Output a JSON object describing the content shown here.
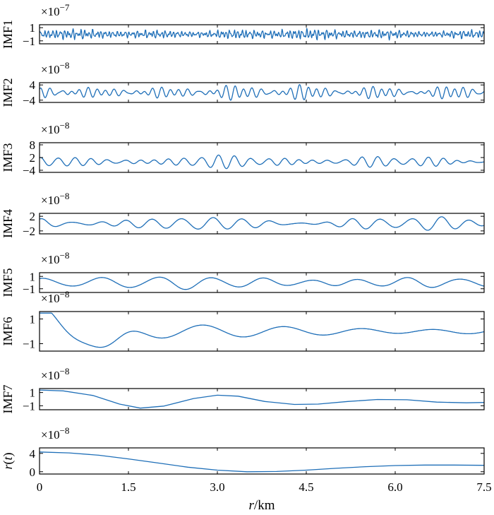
{
  "chart_data": [
    {
      "type": "line",
      "ylabel": "IMF1",
      "multiplier_base": "×10",
      "multiplier_exp": "−7",
      "ylim": [
        -1.45,
        1.45
      ],
      "yticks": [
        {
          "v": 1,
          "label": "1"
        },
        {
          "v": -1,
          "label": "−1"
        }
      ],
      "series": [
        {
          "components": [
            [
              0.32,
              0.068,
              0
            ],
            [
              0.22,
              0.047,
              1.3
            ],
            [
              0.14,
              0.032,
              2.1
            ],
            [
              0.12,
              0.11,
              0.7
            ]
          ]
        }
      ]
    },
    {
      "type": "line",
      "ylabel": "IMF2",
      "multiplier_base": "×10",
      "multiplier_exp": "−8",
      "ylim": [
        -5.2,
        5.2
      ],
      "yticks": [
        {
          "v": 4,
          "label": "4"
        },
        {
          "v": -4,
          "label": "−4"
        }
      ],
      "series": [
        {
          "components": [
            [
              1.4,
              0.155,
              0
            ],
            [
              1.2,
              0.137,
              1.1
            ],
            [
              0.8,
              0.21,
              2.2
            ]
          ]
        }
      ]
    },
    {
      "type": "line",
      "ylabel": "IMF3",
      "multiplier_base": "×10",
      "multiplier_exp": "−8",
      "ylim": [
        -5,
        9
      ],
      "yticks": [
        {
          "v": 8,
          "label": "8"
        },
        {
          "v": 2,
          "label": "2"
        },
        {
          "v": -4,
          "label": "−4"
        }
      ],
      "series": [
        {
          "components": [
            [
              1.3,
              0.27,
              0.5
            ],
            [
              0.9,
              0.3,
              1.5
            ],
            [
              0.5,
              0.22,
              2.4
            ]
          ]
        }
      ]
    },
    {
      "type": "line",
      "ylabel": "IMF4",
      "multiplier_base": "×10",
      "multiplier_exp": "−8",
      "ylim": [
        -2.8,
        2.8
      ],
      "yticks": [
        {
          "v": 2,
          "label": "2"
        },
        {
          "v": -2,
          "label": "−2"
        }
      ],
      "series": [
        {
          "components": [
            [
              0.9,
              0.48,
              1.2
            ],
            [
              0.5,
              0.56,
              0.2
            ],
            [
              0.3,
              0.38,
              2.0
            ]
          ]
        }
      ]
    },
    {
      "type": "line",
      "ylabel": "IMF5",
      "multiplier_base": "×10",
      "multiplier_exp": "−8",
      "ylim": [
        -1.6,
        1.6
      ],
      "yticks": [
        {
          "v": 1,
          "label": "1"
        },
        {
          "v": -1,
          "label": "−1"
        }
      ],
      "series": [
        {
          "components": [
            [
              0.55,
              0.88,
              0.3
            ],
            [
              0.35,
              1.0,
              1.5
            ],
            [
              0.25,
              0.78,
              2.6
            ]
          ]
        }
      ]
    },
    {
      "type": "line",
      "ylabel": "IMF6",
      "multiplier_base": "×10",
      "multiplier_exp": "−8",
      "ylim": [
        -1.6,
        1.6
      ],
      "yticks": [
        {
          "v": 1,
          "label": "1"
        },
        {
          "v": -1,
          "label": "−1"
        }
      ],
      "series": [
        {
          "components": [
            [
              0.35,
              1.32,
              1.3
            ],
            [
              0.2,
              1.52,
              2.2
            ]
          ],
          "onset": [
            0.0,
            1.6,
            1.15,
            2.6
          ]
        }
      ]
    },
    {
      "type": "line",
      "ylabel": "IMF7",
      "multiplier_base": "×10",
      "multiplier_exp": "−8",
      "ylim": [
        -1.6,
        1.6
      ],
      "yticks": [
        {
          "v": 1,
          "label": "1"
        },
        {
          "v": -1,
          "label": "−1"
        }
      ],
      "series": [
        {
          "points": [
            [
              0,
              1.38
            ],
            [
              0.4,
              1.25
            ],
            [
              0.9,
              0.55
            ],
            [
              1.35,
              -0.75
            ],
            [
              1.7,
              -1.35
            ],
            [
              2.1,
              -1.05
            ],
            [
              2.6,
              0.1
            ],
            [
              3.0,
              0.6
            ],
            [
              3.35,
              0.45
            ],
            [
              3.8,
              -0.35
            ],
            [
              4.3,
              -0.8
            ],
            [
              4.7,
              -0.75
            ],
            [
              5.2,
              -0.35
            ],
            [
              5.7,
              -0.05
            ],
            [
              6.2,
              -0.1
            ],
            [
              6.7,
              -0.45
            ],
            [
              7.2,
              -0.55
            ],
            [
              7.5,
              -0.5
            ]
          ]
        }
      ]
    },
    {
      "type": "line",
      "ylabel": "r(t)",
      "multiplier_base": "×10",
      "multiplier_exp": "−8",
      "ylim": [
        -0.5,
        5.2
      ],
      "yticks": [
        {
          "v": 4,
          "label": "4"
        },
        {
          "v": 0,
          "label": "0"
        }
      ],
      "series": [
        {
          "points": [
            [
              0,
              4.3
            ],
            [
              0.5,
              4.1
            ],
            [
              1.0,
              3.6
            ],
            [
              1.5,
              2.8
            ],
            [
              2.0,
              1.9
            ],
            [
              2.5,
              1.0
            ],
            [
              3.0,
              0.35
            ],
            [
              3.5,
              0.0
            ],
            [
              4.0,
              0.05
            ],
            [
              4.5,
              0.35
            ],
            [
              5.0,
              0.75
            ],
            [
              5.5,
              1.1
            ],
            [
              6.0,
              1.35
            ],
            [
              6.5,
              1.45
            ],
            [
              7.0,
              1.45
            ],
            [
              7.5,
              1.4
            ]
          ]
        }
      ]
    }
  ],
  "xaxis": {
    "xlim": [
      0,
      7.5
    ],
    "ticks": [
      {
        "v": 0,
        "label": "0"
      },
      {
        "v": 1.5,
        "label": "1.5"
      },
      {
        "v": 3.0,
        "label": "3.0"
      },
      {
        "v": 4.5,
        "label": "4.5"
      },
      {
        "v": 6.0,
        "label": "6.0"
      },
      {
        "v": 7.5,
        "label": "7.5"
      }
    ],
    "label_var": "r",
    "label_unit": "/km"
  }
}
